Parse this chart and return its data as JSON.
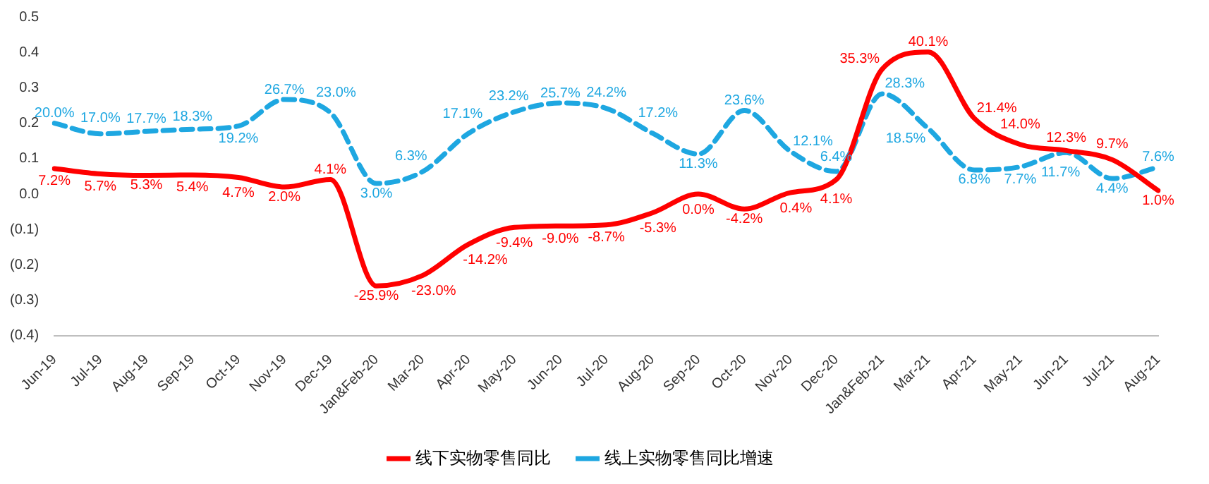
{
  "chart_data": {
    "type": "line",
    "categories": [
      "Jun-19",
      "Jul-19",
      "Aug-19",
      "Sep-19",
      "Oct-19",
      "Nov-19",
      "Dec-19",
      "Jan&Feb-20",
      "Mar-20",
      "Apr-20",
      "May-20",
      "Jun-20",
      "Jul-20",
      "Aug-20",
      "Sep-20",
      "Oct-20",
      "Nov-20",
      "Dec-20",
      "Jan&Feb-21",
      "Mar-21",
      "Apr-21",
      "May-21",
      "Jun-21",
      "Jul-21",
      "Aug-21"
    ],
    "series": [
      {
        "name": "线下实物零售同比",
        "color": "#ff0000",
        "line_style": "solid",
        "values": [
          0.072,
          0.057,
          0.053,
          0.054,
          0.047,
          0.02,
          0.041,
          -0.259,
          -0.23,
          -0.142,
          -0.094,
          -0.09,
          -0.087,
          -0.053,
          0.0,
          -0.042,
          0.004,
          0.041,
          0.353,
          0.401,
          0.214,
          0.14,
          0.123,
          0.097,
          0.01
        ],
        "value_labels": [
          "7.2%",
          "5.7%",
          "5.3%",
          "5.4%",
          "4.7%",
          "2.0%",
          "4.1%",
          "-25.9%",
          "-23.0%",
          "-14.2%",
          "-9.4%",
          "-9.0%",
          "-8.7%",
          "-5.3%",
          "0.0%",
          "-4.2%",
          "0.4%",
          "4.1%",
          "35.3%",
          "40.1%",
          "21.4%",
          "14.0%",
          "12.3%",
          "9.7%",
          "1.0%"
        ]
      },
      {
        "name": "线上实物零售同比增速",
        "color": "#1ea7e1",
        "line_style": "dashed",
        "values": [
          0.2,
          0.17,
          0.177,
          0.183,
          0.192,
          0.267,
          0.23,
          0.03,
          0.063,
          0.171,
          0.232,
          0.257,
          0.242,
          0.172,
          0.113,
          0.236,
          0.121,
          0.064,
          0.283,
          0.185,
          0.068,
          0.077,
          0.117,
          0.044,
          0.076
        ],
        "value_labels": [
          "20.0%",
          "17.0%",
          "17.7%",
          "18.3%",
          "19.2%",
          "26.7%",
          "23.0%",
          "3.0%",
          "6.3%",
          "17.1%",
          "23.2%",
          "25.7%",
          "24.2%",
          "17.2%",
          "11.3%",
          "23.6%",
          "12.1%",
          "6.4%",
          "28.3%",
          "18.5%",
          "6.8%",
          "7.7%",
          "11.7%",
          "4.4%",
          "7.6%"
        ]
      }
    ],
    "ylim": [
      -0.4,
      0.5
    ],
    "yticks": [
      {
        "value": -0.4,
        "label": "(0.4)"
      },
      {
        "value": -0.3,
        "label": "(0.3)"
      },
      {
        "value": -0.2,
        "label": "(0.2)"
      },
      {
        "value": -0.1,
        "label": "(0.1)"
      },
      {
        "value": 0,
        "label": "0.0"
      },
      0.1,
      0.2,
      0.3,
      0.4,
      0.5
    ],
    "grid": false,
    "legend": "bottom",
    "marker": "none"
  }
}
